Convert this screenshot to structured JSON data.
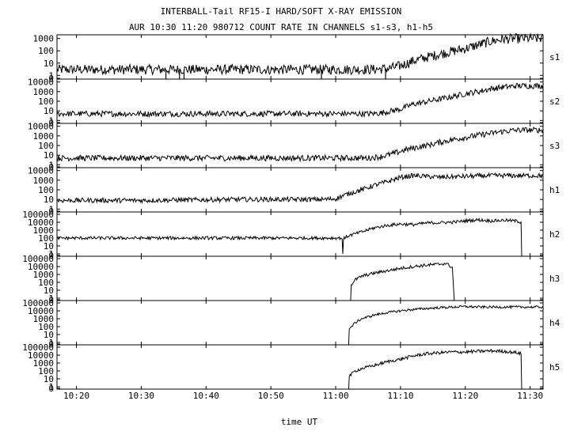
{
  "title": "INTERBALL-Tail RF15-I HARD/SOFT X-RAY EMISSION",
  "subtitle": "AUR 10:30 11:20 980712  COUNT RATE IN CHANNELS s1-s3, h1-h5",
  "chart_data": {
    "type": "line",
    "title": "INTERBALL-Tail RF15-I HARD/SOFT X-RAY EMISSION",
    "subtitle": "AUR 10:30 11:20 980712  COUNT RATE IN CHANNELS s1-s3, h1-h5",
    "xlabel": "time UT",
    "x_ticks": [
      "10:20",
      "10:30",
      "10:40",
      "10:50",
      "11:00",
      "11:10",
      "11:20",
      "11:30"
    ],
    "xlim_minutes_after_10_00": [
      17,
      92
    ],
    "yscale": "log",
    "grid": false,
    "panels": [
      {
        "name": "s1",
        "y_ticks": [
          "1000",
          "100",
          "10",
          "1",
          "0"
        ],
        "tick_values": [
          1000,
          100,
          10,
          1
        ],
        "ylim": [
          0.5,
          2000
        ],
        "points": [
          [
            17,
            3
          ],
          [
            25,
            3
          ],
          [
            35,
            3
          ],
          [
            45,
            3
          ],
          [
            55,
            3
          ],
          [
            60,
            3
          ],
          [
            65,
            3
          ],
          [
            68,
            3.5
          ],
          [
            70,
            6
          ],
          [
            72,
            15
          ],
          [
            75,
            40
          ],
          [
            78,
            90
          ],
          [
            80,
            150
          ],
          [
            82,
            300
          ],
          [
            84,
            600
          ],
          [
            86,
            900
          ],
          [
            88,
            1000
          ],
          [
            92,
            1000
          ]
        ],
        "noise": 0.4,
        "dips_minutes": [
          33.8,
          35.9,
          36.6,
          57.8,
          67.7
        ]
      },
      {
        "name": "s2",
        "y_ticks": [
          "10000",
          "1000",
          "100",
          "10",
          "1",
          "0"
        ],
        "tick_values": [
          10000,
          1000,
          100,
          10,
          1
        ],
        "ylim": [
          0.5,
          20000
        ],
        "points": [
          [
            17,
            5
          ],
          [
            30,
            5
          ],
          [
            45,
            5
          ],
          [
            55,
            5
          ],
          [
            65,
            5
          ],
          [
            67,
            6
          ],
          [
            70,
            15
          ],
          [
            72,
            50
          ],
          [
            75,
            120
          ],
          [
            78,
            300
          ],
          [
            80,
            600
          ],
          [
            82,
            1000
          ],
          [
            84,
            2000
          ],
          [
            86,
            3000
          ],
          [
            88,
            4000
          ],
          [
            92,
            4000
          ]
        ],
        "noise": 0.3,
        "dips_minutes": []
      },
      {
        "name": "s3",
        "y_ticks": [
          "10000",
          "1000",
          "100",
          "10",
          "1",
          "0"
        ],
        "tick_values": [
          10000,
          1000,
          100,
          10,
          1
        ],
        "ylim": [
          0.5,
          20000
        ],
        "points": [
          [
            17,
            5
          ],
          [
            30,
            5
          ],
          [
            45,
            5
          ],
          [
            55,
            5
          ],
          [
            65,
            5
          ],
          [
            67,
            7
          ],
          [
            69,
            15
          ],
          [
            71,
            40
          ],
          [
            74,
            100
          ],
          [
            77,
            300
          ],
          [
            80,
            700
          ],
          [
            83,
            1500
          ],
          [
            86,
            3000
          ],
          [
            88,
            4000
          ],
          [
            92,
            4000
          ]
        ],
        "noise": 0.3,
        "dips_minutes": []
      },
      {
        "name": "h1",
        "y_ticks": [
          "10000",
          "1000",
          "100",
          "10",
          "1",
          "0"
        ],
        "tick_values": [
          10000,
          1000,
          100,
          10,
          1
        ],
        "ylim": [
          0.5,
          20000
        ],
        "points": [
          [
            17,
            8
          ],
          [
            30,
            8
          ],
          [
            45,
            10
          ],
          [
            58,
            10
          ],
          [
            60,
            12
          ],
          [
            62,
            40
          ],
          [
            64,
            100
          ],
          [
            66,
            300
          ],
          [
            68,
            700
          ],
          [
            70,
            2000
          ],
          [
            72,
            3000
          ],
          [
            74,
            2500
          ],
          [
            76,
            2000
          ],
          [
            80,
            2500
          ],
          [
            84,
            3000
          ],
          [
            88,
            3000
          ],
          [
            92,
            3000
          ]
        ],
        "noise": 0.25,
        "dips_minutes": []
      },
      {
        "name": "h2",
        "y_ticks": [
          "100000",
          "10000",
          "1000",
          "100",
          "10",
          "1",
          "0"
        ],
        "tick_values": [
          100000,
          10000,
          1000,
          100,
          10,
          1
        ],
        "ylim": [
          0.5,
          200000
        ],
        "points": [
          [
            17,
            100
          ],
          [
            61,
            100
          ],
          [
            61.1,
            1
          ],
          [
            61.2,
            80
          ],
          [
            62,
            200
          ],
          [
            64,
            600
          ],
          [
            66,
            2000
          ],
          [
            68,
            4000
          ],
          [
            70,
            6000
          ],
          [
            72,
            5000
          ],
          [
            74,
            8000
          ],
          [
            76,
            9000
          ],
          [
            78,
            10000
          ],
          [
            80,
            15000
          ],
          [
            82,
            20000
          ],
          [
            84,
            15000
          ],
          [
            86,
            18000
          ],
          [
            88,
            14000
          ],
          [
            88.6,
            10000
          ],
          [
            88.7,
            0.5
          ]
        ],
        "noise": 0.2,
        "dips_minutes": []
      },
      {
        "name": "h3",
        "y_ticks": [
          "100000",
          "10000",
          "1000",
          "100",
          "10",
          "1",
          "0"
        ],
        "tick_values": [
          100000,
          10000,
          1000,
          100,
          10,
          1
        ],
        "ylim": [
          0.5,
          200000
        ],
        "points": [
          [
            62.3,
            0.5
          ],
          [
            62.4,
            50
          ],
          [
            63,
            200
          ],
          [
            64,
            600
          ],
          [
            66,
            1500
          ],
          [
            68,
            3000
          ],
          [
            70,
            6000
          ],
          [
            72,
            10000
          ],
          [
            74,
            15000
          ],
          [
            76,
            20000
          ],
          [
            77,
            25000
          ],
          [
            78,
            8000
          ],
          [
            78.3,
            0.5
          ]
        ],
        "noise": 0.2,
        "dips_minutes": []
      },
      {
        "name": "h4",
        "y_ticks": [
          "100000",
          "10000",
          "1000",
          "100",
          "10",
          "1",
          "0"
        ],
        "tick_values": [
          100000,
          10000,
          1000,
          100,
          10,
          1
        ],
        "ylim": [
          0.5,
          200000
        ],
        "points": [
          [
            62,
            0.5
          ],
          [
            62.1,
            50
          ],
          [
            63,
            300
          ],
          [
            64,
            1000
          ],
          [
            66,
            3000
          ],
          [
            68,
            6000
          ],
          [
            70,
            10000
          ],
          [
            72,
            15000
          ],
          [
            74,
            20000
          ],
          [
            76,
            25000
          ],
          [
            78,
            30000
          ],
          [
            80,
            35000
          ],
          [
            82,
            30000
          ],
          [
            84,
            30000
          ],
          [
            88,
            30000
          ],
          [
            92,
            30000
          ]
        ],
        "noise": 0.15,
        "dips_minutes": []
      },
      {
        "name": "h5",
        "y_ticks": [
          "100000",
          "10000",
          "1000",
          "100",
          "10",
          "1",
          "0"
        ],
        "tick_values": [
          100000,
          10000,
          1000,
          100,
          10,
          1
        ],
        "ylim": [
          0.5,
          200000
        ],
        "points": [
          [
            62,
            0.5
          ],
          [
            62.1,
            20
          ],
          [
            63,
            100
          ],
          [
            64,
            200
          ],
          [
            66,
            500
          ],
          [
            68,
            1500
          ],
          [
            70,
            3000
          ],
          [
            72,
            8000
          ],
          [
            74,
            15000
          ],
          [
            76,
            20000
          ],
          [
            78,
            25000
          ],
          [
            80,
            25000
          ],
          [
            82,
            30000
          ],
          [
            84,
            35000
          ],
          [
            86,
            30000
          ],
          [
            88,
            20000
          ],
          [
            88.6,
            15000
          ],
          [
            88.7,
            0.5
          ]
        ],
        "noise": 0.2,
        "dips_minutes": []
      }
    ]
  }
}
